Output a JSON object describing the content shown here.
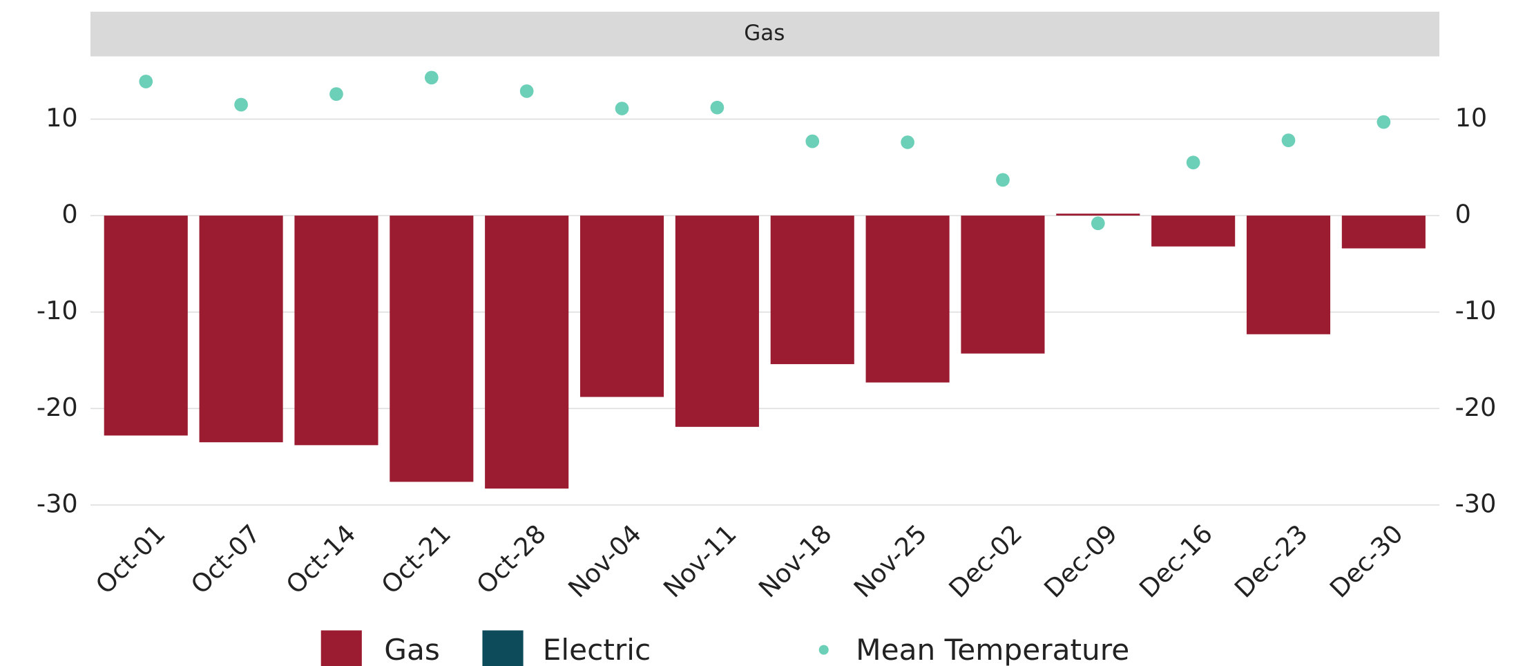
{
  "chart_data": {
    "type": "bar",
    "facet_title": "Gas",
    "categories": [
      "Oct-01",
      "Oct-07",
      "Oct-14",
      "Oct-21",
      "Oct-28",
      "Nov-04",
      "Nov-11",
      "Nov-18",
      "Nov-25",
      "Dec-02",
      "Dec-09",
      "Dec-16",
      "Dec-23",
      "Dec-30"
    ],
    "series": [
      {
        "name": "Gas",
        "color": "#9b1b30",
        "values": [
          -22.8,
          -23.5,
          -23.8,
          -27.6,
          -28.3,
          -18.8,
          -21.9,
          -15.4,
          -17.3,
          -14.3,
          0.2,
          -3.2,
          -12.3,
          -3.4
        ]
      },
      {
        "name": "Electric",
        "color": "#0d4a5a",
        "values": [
          null,
          null,
          null,
          null,
          null,
          null,
          null,
          null,
          null,
          null,
          null,
          null,
          null,
          null
        ]
      },
      {
        "name": "Mean Temperature",
        "color": "#6ccfb8",
        "type": "scatter",
        "values": [
          13.9,
          11.5,
          12.6,
          14.3,
          12.9,
          11.1,
          11.2,
          7.7,
          7.6,
          3.7,
          -0.8,
          5.5,
          7.8,
          9.7
        ]
      }
    ],
    "ylim": [
      -31,
      16.5
    ],
    "yticks": [
      -30,
      -20,
      -10,
      0,
      10
    ],
    "grid": true
  }
}
